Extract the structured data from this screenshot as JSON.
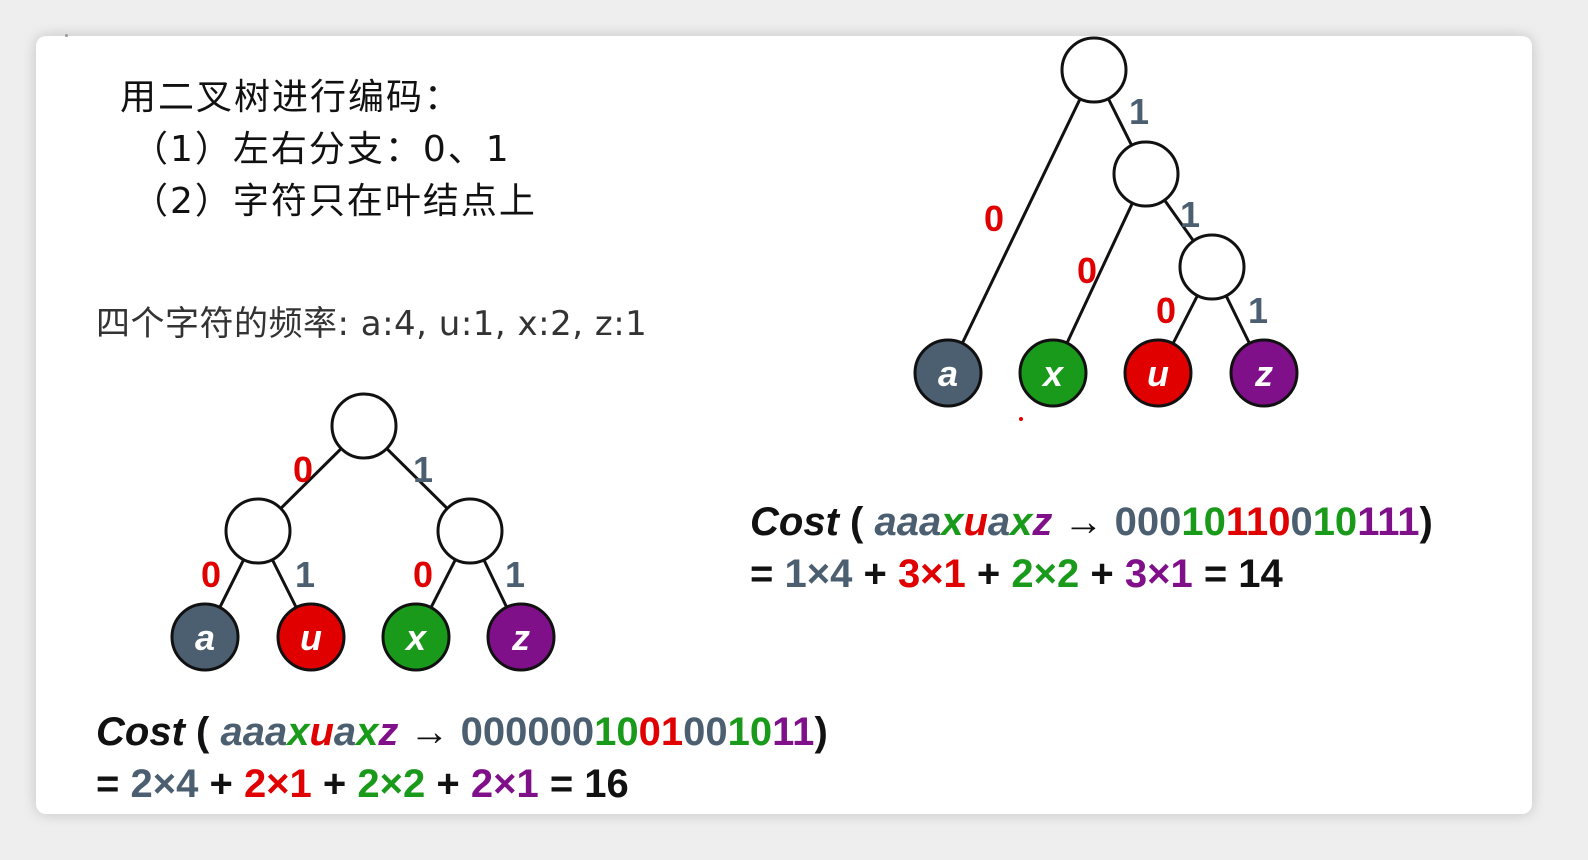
{
  "text": {
    "heading": "用二叉树进行编码：",
    "rule1": "（1）左右分支：0、1",
    "rule2": "（2）字符只在叶结点上",
    "frequency": "四个字符的频率: a:4, u:1, x:2, z:1"
  },
  "colors": {
    "a": "#4b5f70",
    "u": "#e00000",
    "x": "#1a9a1a",
    "z": "#80108a",
    "edge_zero": "#e00000",
    "edge_one": "#4b5f70"
  },
  "tree_balanced": {
    "edge_labels": [
      "0",
      "1",
      "0",
      "1",
      "0",
      "1"
    ],
    "leaves": [
      "a",
      "u",
      "x",
      "z"
    ]
  },
  "tree_skewed": {
    "edge_labels": [
      "1",
      "0",
      "1",
      "0",
      "0",
      "1"
    ],
    "leaves": [
      "a",
      "x",
      "u",
      "z"
    ]
  },
  "cost_balanced": {
    "label": "Cost",
    "open": "(",
    "word": [
      {
        "t": "aaa",
        "c": "a"
      },
      {
        "t": "x",
        "c": "x"
      },
      {
        "t": "u",
        "c": "u"
      },
      {
        "t": "a",
        "c": "a"
      },
      {
        "t": "x",
        "c": "x"
      },
      {
        "t": "z",
        "c": "z"
      }
    ],
    "arrow": "→",
    "code": [
      {
        "t": "000000",
        "c": "a"
      },
      {
        "t": "10",
        "c": "x"
      },
      {
        "t": "01",
        "c": "u"
      },
      {
        "t": "00",
        "c": "a"
      },
      {
        "t": "10",
        "c": "x"
      },
      {
        "t": "11",
        "c": "z"
      }
    ],
    "close": ")",
    "sum": [
      {
        "t": "= ",
        "c": "k"
      },
      {
        "t": "2×4",
        "c": "a"
      },
      {
        "t": " + ",
        "c": "k"
      },
      {
        "t": "2×1",
        "c": "u"
      },
      {
        "t": " + ",
        "c": "k"
      },
      {
        "t": "2×2",
        "c": "x"
      },
      {
        "t": " + ",
        "c": "k"
      },
      {
        "t": "2×1",
        "c": "z"
      },
      {
        "t": " = 16",
        "c": "k"
      }
    ]
  },
  "cost_skewed": {
    "label": "Cost",
    "open": "(",
    "word": [
      {
        "t": "aaa",
        "c": "a"
      },
      {
        "t": "x",
        "c": "x"
      },
      {
        "t": "u",
        "c": "u"
      },
      {
        "t": "a",
        "c": "a"
      },
      {
        "t": "x",
        "c": "x"
      },
      {
        "t": "z",
        "c": "z"
      }
    ],
    "arrow": "→",
    "code": [
      {
        "t": "000",
        "c": "a"
      },
      {
        "t": "10",
        "c": "x"
      },
      {
        "t": "110",
        "c": "u"
      },
      {
        "t": "0",
        "c": "a"
      },
      {
        "t": "10",
        "c": "x"
      },
      {
        "t": "111",
        "c": "z"
      }
    ],
    "close": ")",
    "sum": [
      {
        "t": "= ",
        "c": "k"
      },
      {
        "t": "1×4",
        "c": "a"
      },
      {
        "t": " + ",
        "c": "k"
      },
      {
        "t": "3×1",
        "c": "u"
      },
      {
        "t": " + ",
        "c": "k"
      },
      {
        "t": "2×2",
        "c": "x"
      },
      {
        "t": " + ",
        "c": "k"
      },
      {
        "t": "3×1",
        "c": "z"
      },
      {
        "t": " = 14",
        "c": "k"
      }
    ]
  }
}
